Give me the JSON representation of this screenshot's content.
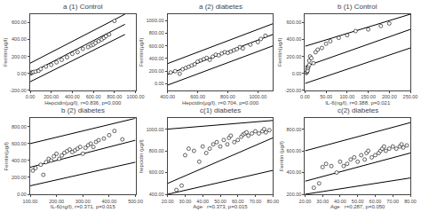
{
  "chart_data": [
    {
      "type": "scatter",
      "title": "a (1) Control",
      "xlabel": "Hepcidin(μg/l), r=0.836, p=0.000",
      "ylabel": "Ferritin(μg/l)",
      "xlim": [
        0,
        1000
      ],
      "ylim": [
        -200,
        700
      ],
      "xticks": [
        {
          "value": 0,
          "label": "0.00"
        },
        {
          "value": 200,
          "label": "200.00"
        },
        {
          "value": 400,
          "label": "400.00"
        },
        {
          "value": 600,
          "label": "600.00"
        },
        {
          "value": 800,
          "label": "800.00"
        },
        {
          "value": 1000,
          "label": "1000.00"
        }
      ],
      "yticks": [
        {
          "value": -200,
          "label": "-200.00"
        },
        {
          "value": 0,
          "label": "0.00"
        },
        {
          "value": 200,
          "label": "200.00"
        },
        {
          "value": 400,
          "label": "400.00"
        },
        {
          "value": 600,
          "label": "600.00"
        }
      ],
      "grid": false,
      "series": [
        {
          "type": "line",
          "color": "black",
          "line_style": "solid",
          "x": [
            0,
            900
          ],
          "values": [
            120,
            700
          ]
        },
        {
          "type": "line",
          "color": "black",
          "line_style": "solid",
          "x": [
            0,
            900
          ],
          "values": [
            -100,
            460
          ]
        },
        {
          "type": "line",
          "color": "black",
          "line_style": "solid",
          "x": [
            0,
            900
          ],
          "values": [
            0,
            580
          ]
        },
        {
          "type": "scatter",
          "color": "white",
          "marker": "circle",
          "x": [
            5,
            8,
            12,
            20,
            30,
            50,
            80,
            100,
            150,
            200,
            250,
            300,
            350,
            400,
            450,
            500,
            550,
            580,
            600,
            620,
            650,
            680,
            700,
            720,
            750,
            800
          ],
          "values": [
            2,
            4,
            6,
            10,
            15,
            20,
            30,
            50,
            80,
            100,
            130,
            160,
            190,
            230,
            250,
            290,
            310,
            330,
            340,
            360,
            380,
            400,
            420,
            440,
            460,
            620
          ]
        }
      ]
    },
    {
      "type": "scatter",
      "title": "a (2) diabetes",
      "xlabel": "Hepcidin(μg/l), r=0.704, p=0.000",
      "ylabel": "Ferritin(μg/l)",
      "xlim": [
        400,
        1100
      ],
      "ylim": [
        -100,
        1100
      ],
      "xticks": [
        {
          "value": 400,
          "label": "400.00"
        },
        {
          "value": 600,
          "label": "600.00"
        },
        {
          "value": 800,
          "label": "800.00"
        },
        {
          "value": 1000,
          "label": "1000.00"
        }
      ],
      "yticks": [
        {
          "value": 0,
          "label": "0.00"
        },
        {
          "value": 200,
          "label": "200.00"
        },
        {
          "value": 400,
          "label": "400.00"
        },
        {
          "value": 600,
          "label": "600.00"
        },
        {
          "value": 800,
          "label": "800.00"
        },
        {
          "value": 1000,
          "label": "1000.00"
        }
      ],
      "grid": false,
      "series": [
        {
          "type": "line",
          "color": "black",
          "line_style": "solid",
          "x": [
            400,
            1100
          ],
          "values": [
            320,
            950
          ]
        },
        {
          "type": "line",
          "color": "black",
          "line_style": "solid",
          "x": [
            400,
            1100
          ],
          "values": [
            -20,
            600
          ]
        },
        {
          "type": "line",
          "color": "black",
          "line_style": "solid",
          "x": [
            400,
            1100
          ],
          "values": [
            150,
            780
          ]
        },
        {
          "type": "scatter",
          "color": "white",
          "marker": "circle",
          "x": [
            420,
            450,
            480,
            500,
            520,
            540,
            560,
            580,
            600,
            620,
            640,
            660,
            680,
            700,
            720,
            740,
            760,
            780,
            800,
            820,
            840,
            860,
            880,
            900,
            950,
            1000,
            1020,
            1050
          ],
          "values": [
            180,
            200,
            160,
            230,
            250,
            270,
            290,
            310,
            350,
            370,
            390,
            410,
            380,
            430,
            460,
            450,
            480,
            500,
            490,
            510,
            530,
            550,
            580,
            560,
            620,
            660,
            710,
            760
          ]
        }
      ]
    },
    {
      "type": "scatter",
      "title": "b (1) Control",
      "xlabel": "IL-6(ng/l), r=0.388, p=0.021",
      "ylabel": "Ferritin(μg/l)",
      "xlim": [
        0,
        250
      ],
      "ylim": [
        -200,
        700
      ],
      "xticks": [
        {
          "value": 0,
          "label": "0.00"
        },
        {
          "value": 50,
          "label": "50.00"
        },
        {
          "value": 100,
          "label": "100.00"
        },
        {
          "value": 150,
          "label": "150.00"
        },
        {
          "value": 200,
          "label": "200.00"
        },
        {
          "value": 250,
          "label": "250.00"
        }
      ],
      "yticks": [
        {
          "value": -200,
          "label": "-200.00"
        },
        {
          "value": 0,
          "label": "0.00"
        },
        {
          "value": 200,
          "label": "200.00"
        },
        {
          "value": 400,
          "label": "400.00"
        },
        {
          "value": 600,
          "label": "600.00"
        }
      ],
      "grid": false,
      "series": [
        {
          "type": "line",
          "color": "black",
          "line_style": "solid",
          "x": [
            0,
            250
          ],
          "values": [
            320,
            700
          ]
        },
        {
          "type": "line",
          "color": "black",
          "line_style": "solid",
          "x": [
            0,
            250
          ],
          "values": [
            -120,
            300
          ]
        },
        {
          "type": "line",
          "color": "black",
          "line_style": "solid",
          "x": [
            0,
            250
          ],
          "values": [
            80,
            520
          ]
        },
        {
          "type": "scatter",
          "color": "white",
          "marker": "circle",
          "x": [
            2,
            3,
            4,
            5,
            5,
            6,
            7,
            8,
            10,
            10,
            12,
            15,
            20,
            25,
            30,
            40,
            50,
            60,
            80,
            100,
            120,
            150,
            180,
            200
          ],
          "values": [
            5,
            8,
            10,
            20,
            50,
            30,
            60,
            80,
            100,
            150,
            200,
            180,
            120,
            250,
            280,
            300,
            350,
            380,
            420,
            450,
            500,
            520,
            560,
            590
          ]
        }
      ]
    },
    {
      "type": "scatter",
      "title": "b (2) diabetes",
      "xlabel": "IL-6(ng/l), r=0.371, p=0.015",
      "ylabel": "Ferritin(μg/l)",
      "xlim": [
        100,
        500
      ],
      "ylim": [
        0,
        900
      ],
      "xticks": [
        {
          "value": 100,
          "label": "100.00"
        },
        {
          "value": 200,
          "label": "200.00"
        },
        {
          "value": 300,
          "label": "300.00"
        },
        {
          "value": 400,
          "label": "400.00"
        },
        {
          "value": 500,
          "label": "500.00"
        }
      ],
      "yticks": [
        {
          "value": 0,
          "label": "0.00"
        },
        {
          "value": 200,
          "label": "200.00"
        },
        {
          "value": 400,
          "label": "400.00"
        },
        {
          "value": 600,
          "label": "600.00"
        },
        {
          "value": 800,
          "label": "800.00"
        }
      ],
      "grid": false,
      "series": [
        {
          "type": "line",
          "color": "black",
          "line_style": "solid",
          "x": [
            100,
            500
          ],
          "values": [
            600,
            900
          ]
        },
        {
          "type": "line",
          "color": "black",
          "line_style": "solid",
          "x": [
            100,
            500
          ],
          "values": [
            100,
            380
          ]
        },
        {
          "type": "line",
          "color": "black",
          "line_style": "solid",
          "x": [
            100,
            500
          ],
          "values": [
            320,
            640
          ]
        },
        {
          "type": "scatter",
          "color": "white",
          "marker": "circle",
          "x": [
            110,
            120,
            140,
            150,
            160,
            170,
            180,
            190,
            200,
            210,
            220,
            230,
            240,
            250,
            260,
            270,
            280,
            290,
            300,
            310,
            320,
            330,
            340,
            350,
            360,
            380,
            400,
            420,
            450
          ],
          "values": [
            280,
            310,
            350,
            230,
            380,
            420,
            400,
            450,
            480,
            420,
            460,
            490,
            510,
            530,
            500,
            520,
            540,
            560,
            480,
            550,
            580,
            600,
            560,
            620,
            640,
            660,
            700,
            750,
            650
          ]
        }
      ]
    },
    {
      "type": "scatter",
      "title": "c(1) diabetes",
      "xlabel": "Age   r=0.373, p=0.015",
      "ylabel": "hepcidin (μg/l)",
      "xlim": [
        20,
        80
      ],
      "ylim": [
        400,
        1100
      ],
      "xticks": [
        {
          "value": 20,
          "label": "20.00"
        },
        {
          "value": 30,
          "label": "30.00"
        },
        {
          "value": 40,
          "label": "40.00"
        },
        {
          "value": 50,
          "label": "50.00"
        },
        {
          "value": 60,
          "label": "60.00"
        },
        {
          "value": 70,
          "label": "70.00"
        },
        {
          "value": 80,
          "label": "80.00"
        }
      ],
      "yticks": [
        {
          "value": 400,
          "label": "400.00"
        },
        {
          "value": 600,
          "label": "600.00"
        },
        {
          "value": 800,
          "label": "800.00"
        },
        {
          "value": 1000,
          "label": "1000.00"
        }
      ],
      "grid": false,
      "series": [
        {
          "type": "line",
          "color": "black",
          "line_style": "solid",
          "x": [
            20,
            80
          ],
          "values": [
            1000,
            1080
          ]
        },
        {
          "type": "line",
          "color": "black",
          "line_style": "solid",
          "x": [
            20,
            80
          ],
          "values": [
            400,
            620
          ]
        },
        {
          "type": "line",
          "color": "black",
          "line_style": "solid",
          "x": [
            20,
            80
          ],
          "values": [
            500,
            920
          ]
        },
        {
          "type": "scatter",
          "color": "white",
          "marker": "circle",
          "x": [
            25,
            28,
            30,
            32,
            35,
            38,
            40,
            42,
            44,
            46,
            48,
            50,
            52,
            54,
            55,
            56,
            58,
            60,
            62,
            63,
            64,
            65,
            66,
            68,
            70,
            72,
            74,
            75,
            76,
            78
          ],
          "values": [
            440,
            480,
            760,
            820,
            800,
            700,
            840,
            780,
            820,
            860,
            880,
            840,
            900,
            860,
            920,
            940,
            880,
            900,
            930,
            950,
            960,
            970,
            940,
            960,
            980,
            960,
            980,
            1000,
            970,
            990
          ]
        }
      ]
    },
    {
      "type": "scatter",
      "title": "c(2) diabetes",
      "xlabel": "Age   r=0.287, p=0.050",
      "ylabel": "Ferritin (μg/l)",
      "xlim": [
        20,
        80
      ],
      "ylim": [
        200,
        900
      ],
      "xticks": [
        {
          "value": 20,
          "label": "20.00"
        },
        {
          "value": 30,
          "label": "30.00"
        },
        {
          "value": 40,
          "label": "40.00"
        },
        {
          "value": 50,
          "label": "50.00"
        },
        {
          "value": 60,
          "label": "60.00"
        },
        {
          "value": 70,
          "label": "70.00"
        },
        {
          "value": 80,
          "label": "80.00"
        }
      ],
      "yticks": [
        {
          "value": 200,
          "label": "200.00"
        },
        {
          "value": 400,
          "label": "400.00"
        },
        {
          "value": 600,
          "label": "600.00"
        },
        {
          "value": 800,
          "label": "800.00"
        }
      ],
      "grid": false,
      "series": [
        {
          "type": "line",
          "color": "black",
          "line_style": "solid",
          "x": [
            20,
            80
          ],
          "values": [
            600,
            860
          ]
        },
        {
          "type": "line",
          "color": "black",
          "line_style": "solid",
          "x": [
            20,
            80
          ],
          "values": [
            200,
            350
          ]
        },
        {
          "type": "line",
          "color": "black",
          "line_style": "solid",
          "x": [
            20,
            80
          ],
          "values": [
            320,
            580
          ]
        },
        {
          "type": "scatter",
          "color": "white",
          "marker": "circle",
          "x": [
            25,
            28,
            30,
            32,
            35,
            38,
            40,
            42,
            44,
            46,
            48,
            50,
            52,
            54,
            55,
            56,
            58,
            60,
            62,
            63,
            64,
            65,
            66,
            68,
            70,
            72,
            74,
            75,
            76,
            78
          ],
          "values": [
            260,
            300,
            450,
            480,
            460,
            400,
            500,
            460,
            480,
            520,
            540,
            500,
            560,
            520,
            580,
            600,
            540,
            560,
            580,
            600,
            620,
            640,
            600,
            620,
            640,
            620,
            640,
            660,
            630,
            650
          ]
        }
      ]
    }
  ]
}
